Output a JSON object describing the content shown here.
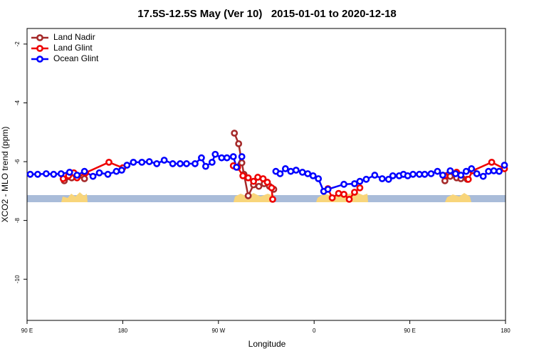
{
  "chart_data": {
    "type": "line",
    "title": "17.5S-12.5S May (Ver 10)   2015-01-01 to 2020-12-18",
    "x_label": "Longitude",
    "y_label": "XCO2 - MLO trend (ppm)",
    "xlim": [
      90,
      540
    ],
    "ylim": [
      -11.4,
      -1.47
    ],
    "xticks": [
      {
        "value": 90,
        "label": "90 E"
      },
      180,
      {
        "value": 270,
        "label": "90 W"
      },
      {
        "value": 360,
        "label": "0"
      },
      {
        "value": 450,
        "label": "90 E"
      },
      {
        "value": 540,
        "label": "180"
      }
    ],
    "yticks": [
      -2,
      -4,
      -6,
      -8,
      -10
    ],
    "legend": "upper left",
    "series": [
      {
        "name": "Land Nadir",
        "color": "#a52a2a",
        "x": [
          125,
          132,
          138,
          144,
          null,
          285,
          289,
          292,
          294,
          298,
          303,
          308,
          313,
          318,
          322,
          null,
          483,
          488,
          494,
          498,
          504
        ],
        "values": [
          -6.65,
          -6.55,
          -6.5,
          -6.58,
          null,
          -5.03,
          -5.39,
          -6.04,
          -6.43,
          -7.16,
          -6.79,
          -6.84,
          -6.75,
          -6.84,
          -6.94,
          null,
          -6.65,
          -6.5,
          -6.55,
          -6.58,
          -6.6
        ]
      },
      {
        "name": "Land Glint",
        "color": "#ee0000",
        "x": [
          124,
          129,
          134,
          137,
          145,
          167,
          180,
          null,
          284,
          288,
          293,
          298,
          303,
          307,
          312,
          316,
          320,
          321,
          null,
          373,
          377,
          383,
          388,
          393,
          398,
          403,
          null,
          483,
          494,
          505,
          509,
          527,
          539
        ],
        "values": [
          -6.58,
          -6.48,
          -6.38,
          -6.55,
          -6.38,
          -6.02,
          -6.21,
          null,
          -6.14,
          -6.19,
          -6.48,
          -6.55,
          -6.67,
          -6.53,
          -6.58,
          -6.7,
          -6.89,
          -7.28,
          null,
          -6.92,
          -7.23,
          -7.08,
          -7.11,
          -7.28,
          -7.04,
          -6.89,
          null,
          -6.48,
          -6.36,
          -6.6,
          -6.31,
          -6.02,
          -6.24
        ]
      },
      {
        "name": "Ocean Glint",
        "color": "#0000ff",
        "x": [
          93,
          100,
          108,
          115,
          122,
          130,
          137,
          144,
          152,
          158,
          166,
          174,
          179,
          184,
          190,
          198,
          205,
          212,
          219,
          227,
          234,
          240,
          248,
          254,
          258,
          264,
          267,
          273,
          278,
          284,
          287,
          292,
          null,
          324,
          328,
          333,
          338,
          343,
          349,
          354,
          359,
          364,
          369,
          373,
          388,
          398,
          403,
          409,
          417,
          424,
          430,
          434,
          440,
          444,
          448,
          453,
          459,
          464,
          470,
          476,
          481,
          488,
          493,
          498,
          503,
          508,
          513,
          519,
          524,
          529,
          534,
          539
        ],
        "values": [
          -6.43,
          -6.43,
          -6.41,
          -6.43,
          -6.41,
          -6.36,
          -6.46,
          -6.33,
          -6.5,
          -6.38,
          -6.43,
          -6.33,
          -6.29,
          -6.12,
          -6.02,
          -6.02,
          -6.0,
          -6.07,
          -5.95,
          -6.07,
          -6.07,
          -6.07,
          -6.07,
          -5.87,
          -6.16,
          -6.02,
          -5.75,
          -5.87,
          -5.87,
          -5.83,
          -6.19,
          -5.83,
          null,
          -6.33,
          -6.41,
          -6.24,
          -6.33,
          -6.29,
          -6.36,
          -6.41,
          -6.48,
          -6.58,
          -7.01,
          -6.94,
          -6.77,
          -6.75,
          -6.67,
          -6.6,
          -6.46,
          -6.58,
          -6.6,
          -6.48,
          -6.48,
          -6.43,
          -6.48,
          -6.43,
          -6.43,
          -6.43,
          -6.41,
          -6.33,
          -6.46,
          -6.31,
          -6.41,
          -6.46,
          -6.33,
          -6.24,
          -6.41,
          -6.5,
          -6.33,
          -6.31,
          -6.33,
          -6.12
        ]
      }
    ]
  }
}
